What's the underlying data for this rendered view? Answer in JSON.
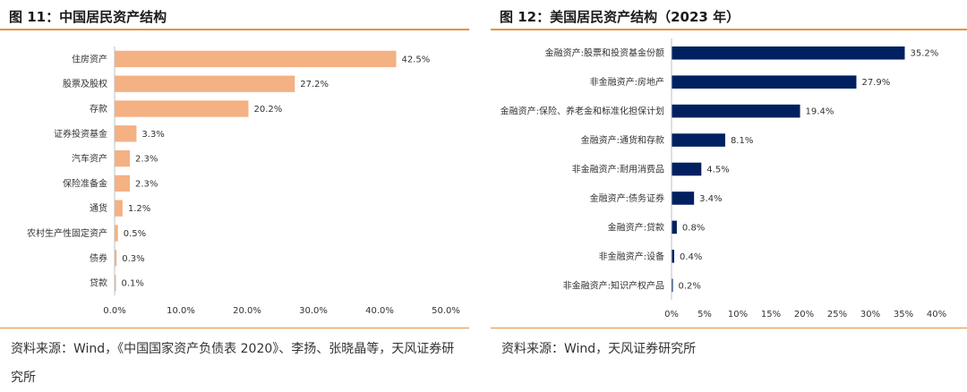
{
  "charts": {
    "left": {
      "title": "图 11：中国居民资产结构",
      "source": "资料来源：Wind，《中国国家资产负债表 2020》、李扬、张晓晶等，天风证券研究所"
    },
    "right": {
      "title": "图 12：美国居民资产结构（2023 年）",
      "source": "资料来源：Wind，天风证券研究所"
    }
  },
  "chart_data": [
    {
      "type": "bar",
      "orientation": "horizontal",
      "categories": [
        "住房资产",
        "股票及股权",
        "存款",
        "证券投资基金",
        "汽车资产",
        "保险准备金",
        "通货",
        "农村生产性固定资产",
        "债券",
        "贷款"
      ],
      "values": [
        42.5,
        27.2,
        20.2,
        3.3,
        2.3,
        2.3,
        1.2,
        0.5,
        0.3,
        0.1
      ],
      "value_labels": [
        "42.5%",
        "27.2%",
        "20.2%",
        "3.3%",
        "2.3%",
        "2.3%",
        "1.2%",
        "0.5%",
        "0.3%",
        "0.1%"
      ],
      "xlim": [
        0,
        50
      ],
      "xticks": [
        "0.0%",
        "10.0%",
        "20.0%",
        "30.0%",
        "40.0%",
        "50.0%"
      ],
      "bar_color": "#f4b183",
      "grid": false
    },
    {
      "type": "bar",
      "orientation": "horizontal",
      "categories": [
        "金融资产:股票和投资基金份额",
        "非金融资产:房地产",
        "金融资产:保险、养老金和标准化担保计划",
        "金融资产:通货和存款",
        "非金融资产:耐用消费品",
        "金融资产:债务证券",
        "金融资产:贷款",
        "非金融资产:设备",
        "非金融资产:知识产权产品"
      ],
      "values": [
        35.2,
        27.9,
        19.4,
        8.1,
        4.5,
        3.4,
        0.8,
        0.4,
        0.2
      ],
      "value_labels": [
        "35.2%",
        "27.9%",
        "19.4%",
        "8.1%",
        "4.5%",
        "3.4%",
        "0.8%",
        "0.4%",
        "0.2%"
      ],
      "xlim": [
        0,
        40
      ],
      "xticks": [
        "0%",
        "5%",
        "10%",
        "15%",
        "20%",
        "25%",
        "30%",
        "35%",
        "40%"
      ],
      "bar_color": "#002060",
      "grid": false
    }
  ]
}
